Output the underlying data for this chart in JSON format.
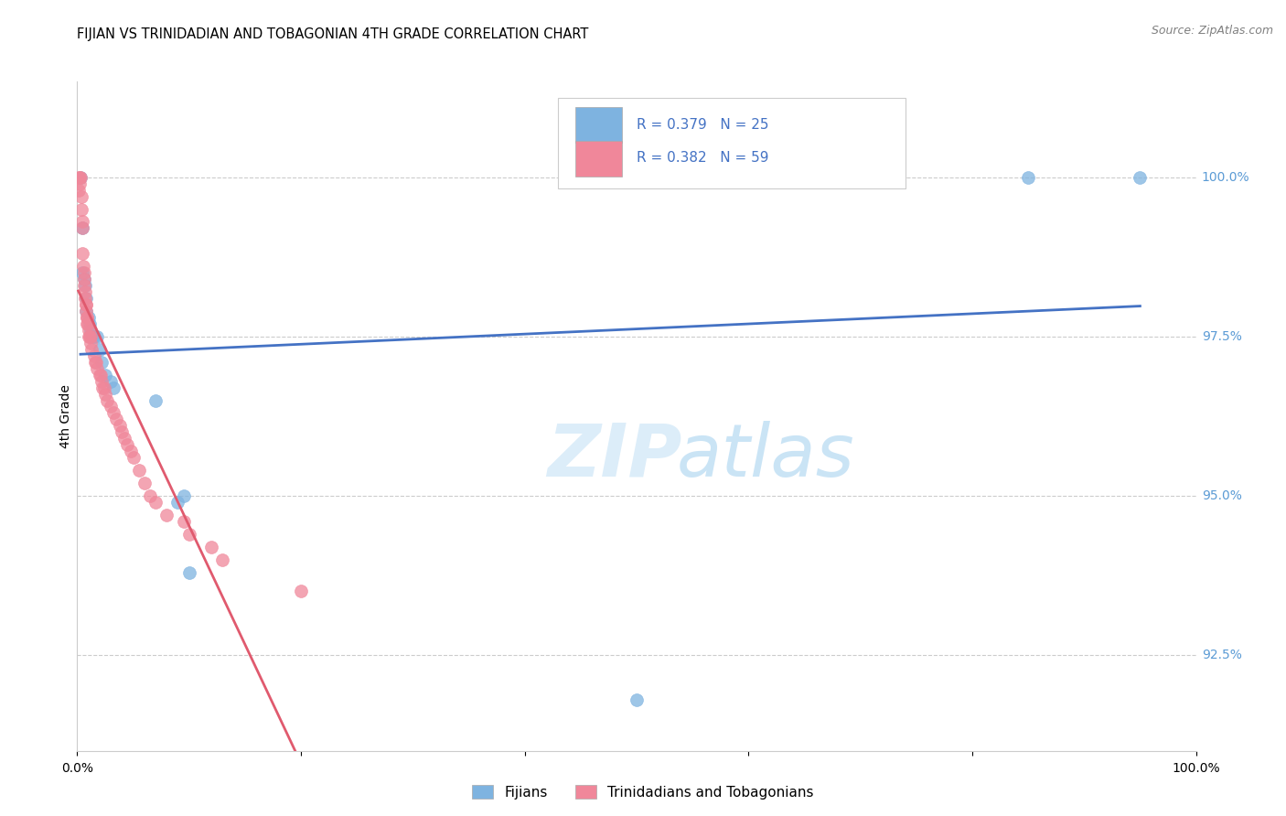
{
  "title": "FIJIAN VS TRINIDADIAN AND TOBAGONIAN 4TH GRADE CORRELATION CHART",
  "source": "Source: ZipAtlas.com",
  "ylabel": "4th Grade",
  "ytick_values": [
    92.5,
    95.0,
    97.5,
    100.0
  ],
  "xlim": [
    0.0,
    100.0
  ],
  "ylim": [
    91.0,
    101.5
  ],
  "fijian_color": "#7eb3e0",
  "trinidadian_color": "#f0879a",
  "fijian_R": 0.379,
  "fijian_N": 25,
  "trinidadian_R": 0.382,
  "trinidadian_N": 59,
  "legend_R_color": "#4472c4",
  "trend_blue": "#4472c4",
  "trend_pink": "#e05a6e",
  "fijian_x": [
    0.3,
    0.5,
    0.5,
    0.6,
    0.7,
    0.8,
    0.8,
    1.0,
    1.1,
    1.2,
    1.4,
    1.5,
    1.8,
    2.0,
    2.2,
    2.5,
    3.0,
    3.2,
    7.0,
    9.0,
    9.5,
    10.0,
    50.0,
    85.0,
    95.0
  ],
  "fijian_y": [
    100.0,
    99.2,
    98.5,
    98.4,
    98.3,
    98.1,
    97.9,
    97.8,
    97.7,
    97.6,
    97.5,
    97.5,
    97.5,
    97.3,
    97.1,
    96.9,
    96.8,
    96.7,
    96.5,
    94.9,
    95.0,
    93.8,
    91.8,
    100.0,
    100.0
  ],
  "trinidadian_x": [
    0.1,
    0.15,
    0.2,
    0.25,
    0.3,
    0.35,
    0.4,
    0.45,
    0.5,
    0.5,
    0.55,
    0.6,
    0.6,
    0.65,
    0.7,
    0.7,
    0.75,
    0.8,
    0.8,
    0.85,
    0.9,
    0.9,
    0.95,
    1.0,
    1.0,
    1.1,
    1.2,
    1.2,
    1.3,
    1.5,
    1.6,
    1.7,
    1.8,
    2.0,
    2.1,
    2.2,
    2.3,
    2.4,
    2.5,
    2.7,
    3.0,
    3.2,
    3.5,
    3.8,
    4.0,
    4.2,
    4.5,
    4.8,
    5.0,
    5.5,
    6.0,
    6.5,
    7.0,
    8.0,
    9.5,
    10.0,
    12.0,
    13.0,
    20.0
  ],
  "trinidadian_y": [
    99.8,
    100.0,
    100.0,
    99.9,
    100.0,
    99.7,
    99.5,
    99.3,
    99.2,
    98.8,
    98.6,
    98.5,
    98.4,
    98.3,
    98.2,
    98.1,
    98.0,
    98.0,
    97.9,
    97.8,
    97.8,
    97.7,
    97.7,
    97.6,
    97.5,
    97.5,
    97.5,
    97.4,
    97.3,
    97.2,
    97.1,
    97.1,
    97.0,
    96.9,
    96.9,
    96.8,
    96.7,
    96.7,
    96.6,
    96.5,
    96.4,
    96.3,
    96.2,
    96.1,
    96.0,
    95.9,
    95.8,
    95.7,
    95.6,
    95.4,
    95.2,
    95.0,
    94.9,
    94.7,
    94.6,
    94.4,
    94.2,
    94.0,
    93.5
  ]
}
